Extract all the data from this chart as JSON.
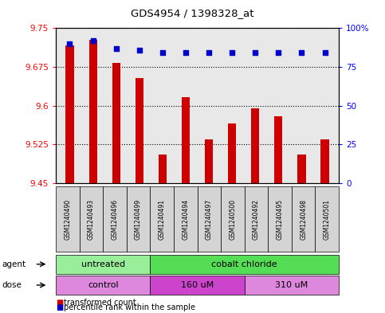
{
  "title": "GDS4954 / 1398328_at",
  "samples": [
    "GSM1240490",
    "GSM1240493",
    "GSM1240496",
    "GSM1240499",
    "GSM1240491",
    "GSM1240494",
    "GSM1240497",
    "GSM1240500",
    "GSM1240492",
    "GSM1240495",
    "GSM1240498",
    "GSM1240501"
  ],
  "transformed_counts": [
    9.717,
    9.727,
    9.683,
    9.653,
    9.505,
    9.617,
    9.535,
    9.565,
    9.595,
    9.58,
    9.505,
    9.535
  ],
  "percentile_ranks": [
    90,
    92,
    87,
    86,
    84,
    84,
    84,
    84,
    84,
    84,
    84,
    84
  ],
  "ylim_left": [
    9.45,
    9.75
  ],
  "ylim_right": [
    0,
    100
  ],
  "yticks_left": [
    9.45,
    9.525,
    9.6,
    9.675,
    9.75
  ],
  "yticks_right": [
    0,
    25,
    50,
    75,
    100
  ],
  "ytick_labels_right": [
    "0",
    "25",
    "50",
    "75",
    "100%"
  ],
  "bar_color": "#cc0000",
  "dot_color": "#0000cc",
  "agent_groups": [
    {
      "label": "untreated",
      "start": 0,
      "end": 4,
      "color": "#99ee99"
    },
    {
      "label": "cobalt chloride",
      "start": 4,
      "end": 12,
      "color": "#55dd55"
    }
  ],
  "dose_groups": [
    {
      "label": "control",
      "start": 0,
      "end": 4,
      "color": "#dd88dd"
    },
    {
      "label": "160 uM",
      "start": 4,
      "end": 8,
      "color": "#cc44cc"
    },
    {
      "label": "310 uM",
      "start": 8,
      "end": 12,
      "color": "#dd88dd"
    }
  ],
  "legend_items": [
    {
      "label": "transformed count",
      "color": "#cc0000"
    },
    {
      "label": "percentile rank within the sample",
      "color": "#0000cc"
    }
  ],
  "grid_color": "#000000",
  "plot_bg_color": "#e8e8e8",
  "bar_width": 0.35,
  "figsize": [
    4.83,
    3.93
  ],
  "dpi": 100
}
